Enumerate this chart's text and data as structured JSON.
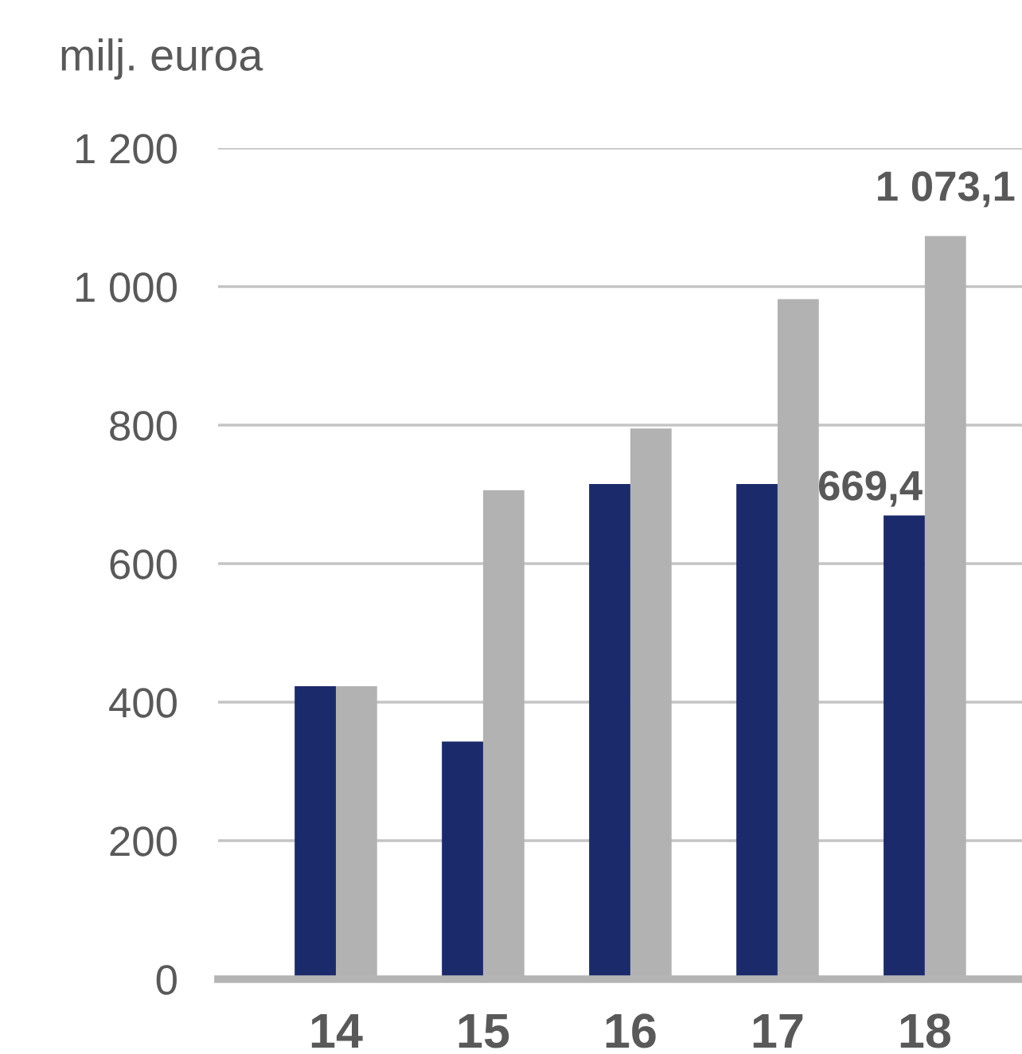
{
  "chart_data": {
    "type": "bar",
    "ylabel": "milj. euroa",
    "categories": [
      "14",
      "15",
      "16",
      "17",
      "18"
    ],
    "series": [
      {
        "color": "#1b2a6b",
        "values": [
          423,
          343,
          715,
          715,
          669.4
        ],
        "value_labels": [
          null,
          null,
          null,
          null,
          "669,4"
        ]
      },
      {
        "color": "#b2b2b2",
        "values": [
          423,
          706,
          795,
          982,
          1073.1
        ],
        "value_labels": [
          null,
          null,
          null,
          null,
          "1 073,1"
        ]
      }
    ],
    "ylim": [
      0,
      1200
    ],
    "yticks": [
      0,
      200,
      400,
      600,
      800,
      {
        "value": 1000,
        "label": "1 000"
      },
      {
        "value": 1200,
        "label": "1 200"
      }
    ],
    "grid": "y"
  }
}
